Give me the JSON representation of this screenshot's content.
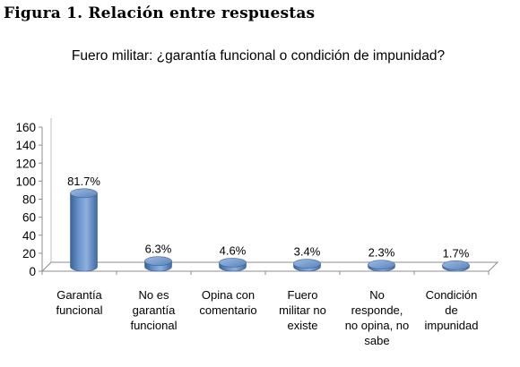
{
  "figure_title": "Figura 1. Relación entre respuestas",
  "chart_data": {
    "type": "bar",
    "title": "Fuero militar: ¿garantía funcional o condición de impunidad?",
    "categories": [
      [
        "Garantía",
        "funcional"
      ],
      [
        "No es",
        "garantía",
        "funcional"
      ],
      [
        "Opina con",
        "comentario"
      ],
      [
        "Fuero",
        "militar no",
        "existe"
      ],
      [
        "No",
        "responde,",
        "no opina, no",
        "sabe"
      ],
      [
        "Condición",
        "de",
        "impunidad"
      ]
    ],
    "values": [
      81.7,
      6.3,
      4.6,
      3.4,
      2.3,
      1.7
    ],
    "data_labels": [
      "81.7%",
      "6.3%",
      "4.6%",
      "3.4%",
      "2.3%",
      "1.7%"
    ],
    "y_ticks": [
      "0",
      "20",
      "40",
      "60",
      "80",
      "100",
      "120",
      "140",
      "160"
    ],
    "ylim": [
      0,
      160
    ],
    "grid": false,
    "legend": "none",
    "bar_color": "#4f81bd"
  }
}
